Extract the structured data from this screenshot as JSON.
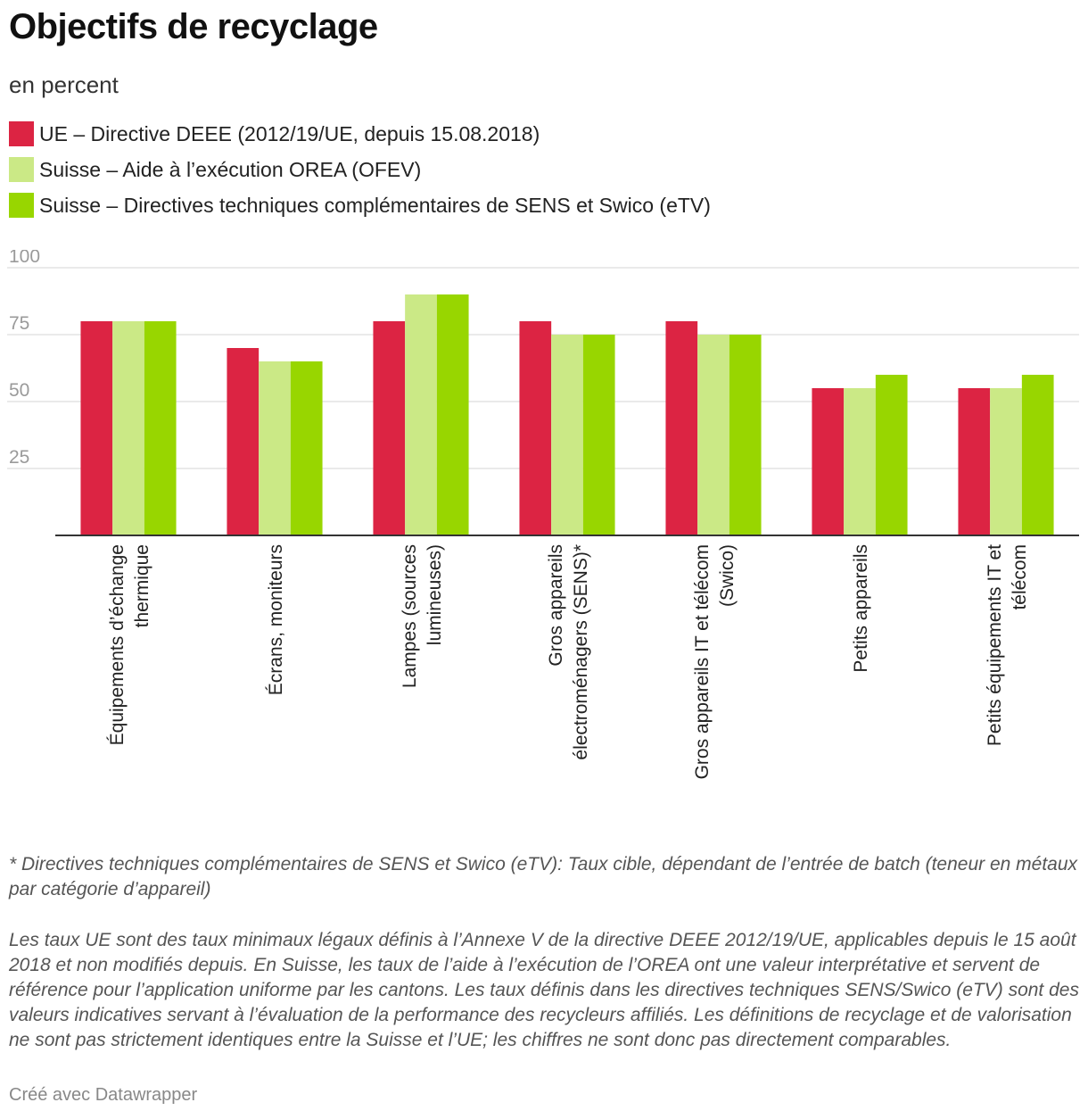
{
  "title": "Objectifs de recyclage",
  "subtitle": "en percent",
  "legend": [
    {
      "label": "UE – Directive DEEE (2012/19/UE, depuis 15.08.2018)",
      "color": "#dc2443"
    },
    {
      "label": "Suisse – Aide à l’exécution OREA (OFEV)",
      "color": "#cbe986"
    },
    {
      "label": "Suisse – Directives techniques complémentaires de SENS et Swico (eTV)",
      "color": "#98d600"
    }
  ],
  "chart_data": {
    "type": "bar",
    "categories": [
      [
        "Équipements d’échange",
        "thermique"
      ],
      [
        "Écrans, moniteurs"
      ],
      [
        "Lampes (sources",
        "lumineuses)"
      ],
      [
        "Gros appareils",
        "électroménagers (SENS)*"
      ],
      [
        "Gros appareils IT et télécom",
        "(Swico)"
      ],
      [
        "Petits appareils"
      ],
      [
        "Petits équipements IT et",
        "télécom"
      ]
    ],
    "series": [
      {
        "name": "UE – Directive DEEE (2012/19/UE, depuis 15.08.2018)",
        "color": "#dc2443",
        "values": [
          80,
          70,
          80,
          80,
          80,
          55,
          55
        ]
      },
      {
        "name": "Suisse – Aide à l’exécution OREA (OFEV)",
        "color": "#cbe986",
        "values": [
          80,
          65,
          90,
          75,
          75,
          55,
          55
        ]
      },
      {
        "name": "Suisse – Directives techniques complémentaires de SENS et Swico (eTV)",
        "color": "#98d600",
        "values": [
          80,
          65,
          90,
          75,
          75,
          60,
          60
        ]
      }
    ],
    "yticks": [
      "100",
      "75",
      "50",
      "25"
    ],
    "ylim": [
      0,
      100
    ],
    "grid": true,
    "legend_position": "top-left"
  },
  "notes": {
    "footnote": "* Directives techniques complémentaires de SENS et Swico (eTV): Taux cible, dépendant de l’entrée de batch (teneur en métaux par catégorie d’appareil)",
    "description": "Les taux UE sont des taux minimaux légaux définis à l’Annexe V de la directive DEEE 2012/19/UE, applicables depuis le 15 août 2018 et non modifiés depuis. En Suisse, les taux de l’aide à l’exécution de l’OREA ont une valeur interprétative et servent de référence pour l’application uniforme par les cantons. Les taux définis dans les directives techniques SENS/Swico (eTV) sont des valeurs indicatives servant à l’évaluation de la performance des recycleurs affiliés. Les définitions de recyclage et de valorisation ne sont pas strictement identiques entre la Suisse et l’UE; les chiffres ne sont donc pas directement comparables."
  },
  "credit": "Créé avec Datawrapper"
}
